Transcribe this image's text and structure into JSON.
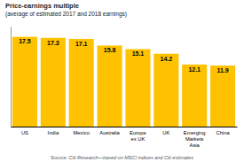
{
  "chart_data": {
    "type": "bar",
    "title": "Price-earnings multiple",
    "subtitle": "(average of estimated 2017 and 2018 earnings)",
    "source": "Source: Citi Research—based on MSCI indices and Citi estimates",
    "categories": [
      "US",
      "India",
      "Mexico",
      "Australia",
      "Europe\nex UK",
      "UK",
      "Emerging\nMarkets\nAsia",
      "China"
    ],
    "values": [
      17.5,
      17.3,
      17.1,
      15.8,
      15.1,
      14.2,
      12.1,
      11.9
    ],
    "color": "#FFC200",
    "ylim": [
      0,
      19.5
    ],
    "data_labels": true,
    "tick_labels": "x"
  }
}
